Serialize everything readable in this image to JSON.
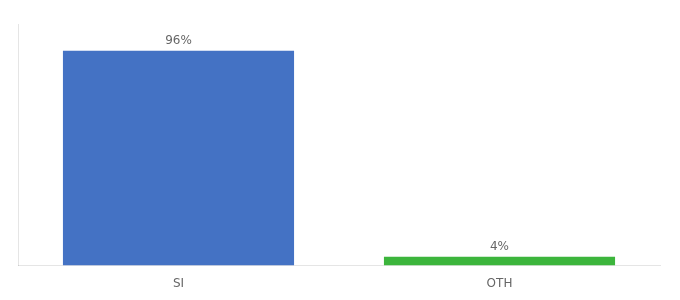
{
  "chart_data": {
    "type": "bar",
    "categories": [
      "SI",
      "OTH"
    ],
    "values": [
      96,
      4
    ],
    "value_labels": [
      "96%",
      "4%"
    ],
    "colors": [
      "#4472c4",
      "#3cb53c"
    ],
    "ylim": [
      0,
      108
    ],
    "yticks": [],
    "grid": false,
    "tick_labels": "x",
    "data_labels": true
  }
}
